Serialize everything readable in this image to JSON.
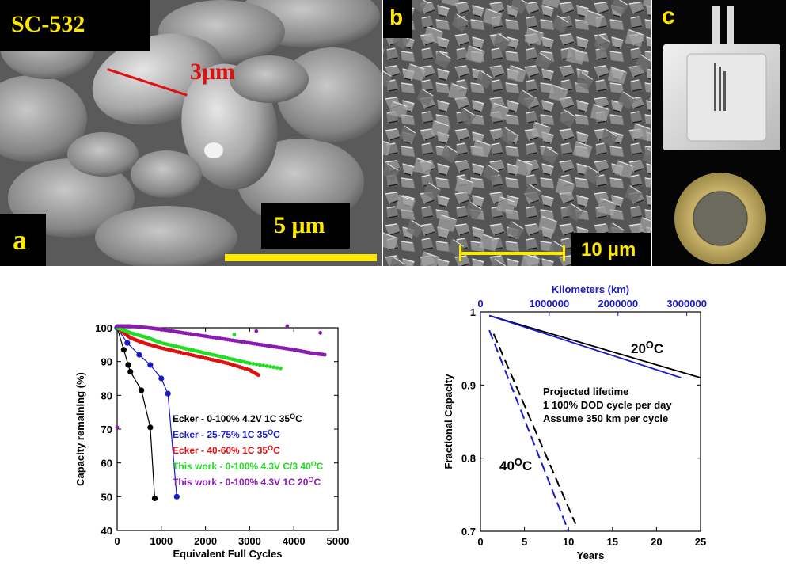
{
  "panels": {
    "a": {
      "letter": "a",
      "sample": "SC-532",
      "particle_dim": "3μm",
      "scalebar": "5 μm"
    },
    "b": {
      "letter": "b",
      "scalebar": "10 μm"
    },
    "c": {
      "letter": "c"
    }
  },
  "colors": {
    "black": "#000000",
    "blue": "#1a1ac8",
    "red": "#e01010",
    "green": "#22dd22",
    "purple": "#8a1ab0",
    "yellow": "#ffe800"
  },
  "chart_data": [
    {
      "type": "scatter",
      "xlabel": "Equivalent Full Cycles",
      "ylabel": "Capacity remaining (%)",
      "xlim": [
        0,
        5000
      ],
      "ylim": [
        40,
        100
      ],
      "xticks": [
        "0",
        "1000",
        "2000",
        "3000",
        "4000",
        "5000"
      ],
      "yticks": [
        "40",
        "50",
        "60",
        "70",
        "80",
        "90",
        "100"
      ],
      "legend": [
        {
          "text": "Ecker - 0-100% 4.2V 1C 35",
          "sup": "O",
          "tail": "C",
          "color": "#000000"
        },
        {
          "text": "Ecker - 25-75% 1C 35",
          "sup": "O",
          "tail": "C",
          "color": "#1a1ac8"
        },
        {
          "text": "Ecker - 40-60% 1C 35",
          "sup": "O",
          "tail": "C",
          "color": "#e01010"
        },
        {
          "text": "This work - 0-100% 4.3V C/3 40",
          "sup": "O",
          "tail": "C",
          "color": "#22dd22"
        },
        {
          "text": "This work - 0-100% 4.3V 1C 20",
          "sup": "O",
          "tail": "C",
          "color": "#8a1ab0"
        }
      ],
      "series": [
        {
          "name": "Ecker - 0-100% 4.2V 1C 35OC",
          "color": "#000000",
          "style": "line-markers",
          "x": [
            0,
            150,
            250,
            300,
            550,
            750,
            850
          ],
          "y": [
            100,
            93.5,
            89,
            87,
            81.5,
            70.5,
            49.5
          ]
        },
        {
          "name": "Ecker - 25-75% 1C 35OC",
          "color": "#1a1ac8",
          "style": "line-markers",
          "x": [
            0,
            230,
            500,
            750,
            1000,
            1150,
            1350
          ],
          "y": [
            100,
            95.5,
            92,
            89,
            85,
            80.5,
            50
          ]
        },
        {
          "name": "Ecker - 40-60% 1C 35OC",
          "color": "#e01010",
          "style": "dense",
          "x": [
            0,
            300,
            600,
            1000,
            1500,
            2000,
            2500,
            3000,
            3200
          ],
          "y": [
            100,
            97,
            95.5,
            94,
            92.5,
            91,
            89.5,
            87.5,
            86
          ]
        },
        {
          "name": "This work - 0-100% 4.3V C/3 40OC",
          "color": "#22dd22",
          "style": "dense",
          "x": [
            0,
            300,
            700,
            1000,
            1500,
            2000,
            2500,
            3000,
            3700
          ],
          "y": [
            100,
            98.5,
            97,
            95.5,
            94,
            92.5,
            91,
            89.5,
            88
          ]
        },
        {
          "name": "This work - 0-100% 4.3V 1C 20OC",
          "color": "#8a1ab0",
          "style": "dense",
          "x": [
            0,
            300,
            700,
            1000,
            1500,
            2000,
            2500,
            3000,
            3500,
            4000,
            4400,
            4700
          ],
          "y": [
            100.5,
            100.5,
            100,
            99.5,
            98.5,
            97.5,
            96.5,
            95.5,
            94.5,
            93.5,
            92.5,
            92
          ]
        }
      ],
      "outliers": [
        {
          "x": 0,
          "y": 70.5,
          "color": "#8a1ab0"
        },
        {
          "x": 2650,
          "y": 98,
          "color": "#22dd22"
        },
        {
          "x": 3150,
          "y": 99,
          "color": "#8a1ab0"
        },
        {
          "x": 3850,
          "y": 100.5,
          "color": "#8a1ab0"
        },
        {
          "x": 4600,
          "y": 98.5,
          "color": "#8a1ab0"
        }
      ]
    },
    {
      "type": "line",
      "xlabel": "Years",
      "ylabel": "Fractional Capacity",
      "x2label": "Kilometers (km)",
      "xlim": [
        0,
        25
      ],
      "ylim": [
        0.7,
        1.0
      ],
      "x2lim": [
        0,
        3200000
      ],
      "xticks": [
        "0",
        "5",
        "10",
        "15",
        "20",
        "25"
      ],
      "yticks": [
        "0.7",
        "0.8",
        "0.9",
        "1"
      ],
      "x2ticks": [
        "0",
        "1000000",
        "2000000",
        "3000000"
      ],
      "annotations": {
        "proj1": "Projected lifetime",
        "proj2": "1 100% DOD cycle per day",
        "proj3": "Assume 350 km per cycle",
        "t20": "20",
        "t40": "40",
        "sup": "O",
        "unit": "C"
      },
      "series": [
        {
          "color": "#000000",
          "dash": false,
          "x": [
            1,
            25
          ],
          "y": [
            0.995,
            0.91
          ]
        },
        {
          "color": "#1a1ac8",
          "dash": false,
          "x": [
            1,
            22.8
          ],
          "y": [
            0.995,
            0.91
          ]
        },
        {
          "color": "#000000",
          "dash": true,
          "x": [
            1.5,
            10.8
          ],
          "y": [
            0.97,
            0.71
          ]
        },
        {
          "color": "#1a1ac8",
          "dash": true,
          "x": [
            1,
            10
          ],
          "y": [
            0.975,
            0.7
          ]
        }
      ]
    }
  ]
}
